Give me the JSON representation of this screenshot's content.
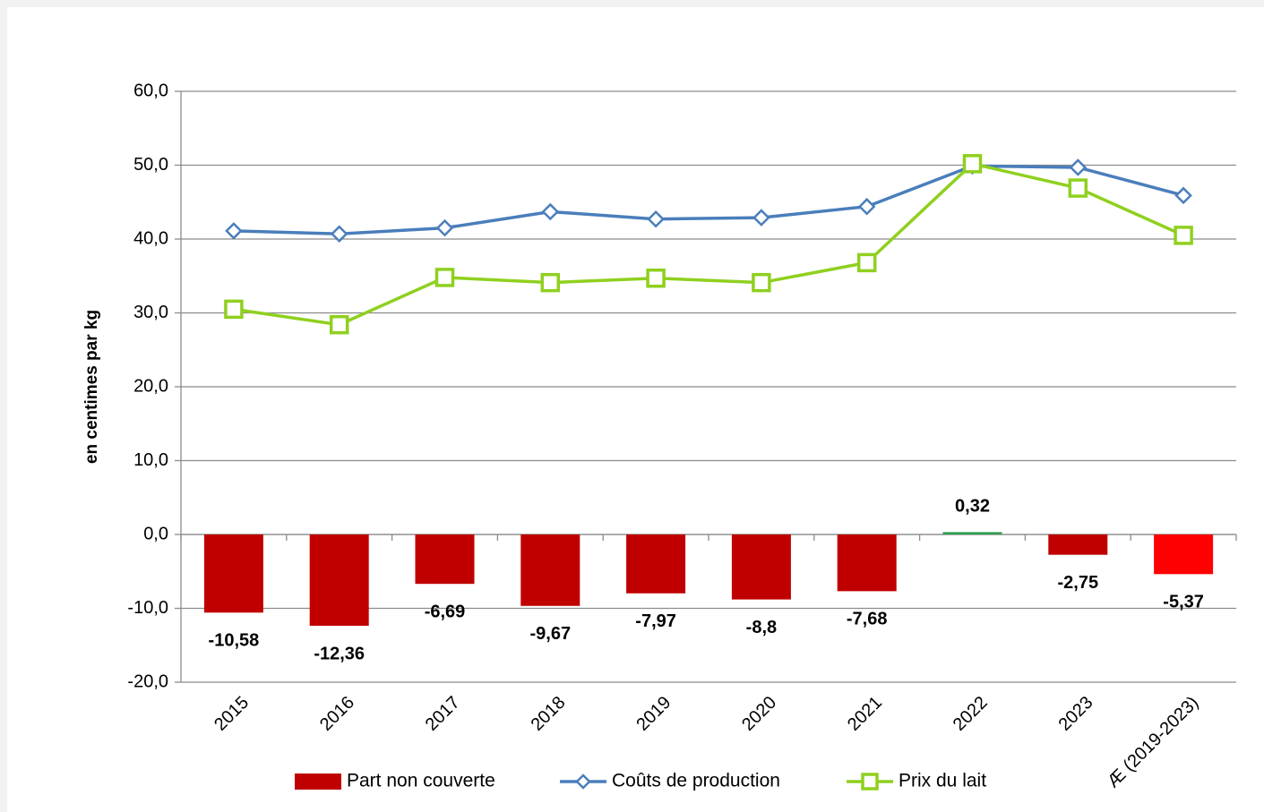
{
  "chart_data": {
    "type": "bar_line",
    "ylabel": "en centimes par kg",
    "categories": [
      "2015",
      "2016",
      "2017",
      "2018",
      "2019",
      "2020",
      "2021",
      "2022",
      "2023",
      "Æ (2019-2023)"
    ],
    "ylim": [
      -20,
      60
    ],
    "yticks": [
      {
        "value": -20,
        "label": "-20,0"
      },
      {
        "value": -10,
        "label": "-10,0"
      },
      {
        "value": 0,
        "label": "0,0"
      },
      {
        "value": 10,
        "label": "10,0"
      },
      {
        "value": 20,
        "label": "20,0"
      },
      {
        "value": 30,
        "label": "30,0"
      },
      {
        "value": 40,
        "label": "40,0"
      },
      {
        "value": 50,
        "label": "50,0"
      },
      {
        "value": 60,
        "label": "60,0"
      }
    ],
    "grid": true,
    "legend": "bottom",
    "series": [
      {
        "name": "Part non couverte",
        "type": "bar",
        "color": "#c00000",
        "colors": [
          "#c00000",
          "#c00000",
          "#c00000",
          "#c00000",
          "#c00000",
          "#c00000",
          "#c00000",
          "#2e9e4f",
          "#c00000",
          "#ff0000"
        ],
        "values": [
          -10.58,
          -12.36,
          -6.69,
          -9.67,
          -7.97,
          -8.8,
          -7.68,
          0.32,
          -2.75,
          -5.37
        ],
        "value_labels": [
          "-10,58",
          "-12,36",
          "-6,69",
          "-9,67",
          "-7,97",
          "-8,8",
          "-7,68",
          "0,32",
          "-2,75",
          "-5,37"
        ]
      },
      {
        "name": "Coûts de production",
        "type": "line",
        "marker": "diamond",
        "color": "#4a7ebb",
        "values": [
          41.1,
          40.7,
          41.5,
          43.7,
          42.7,
          42.9,
          44.4,
          49.9,
          49.7,
          45.9
        ]
      },
      {
        "name": "Prix du lait",
        "type": "line",
        "marker": "square",
        "color": "#8fd01f",
        "values": [
          30.5,
          28.4,
          34.8,
          34.1,
          34.7,
          34.1,
          36.8,
          50.2,
          46.9,
          40.5
        ]
      }
    ]
  }
}
